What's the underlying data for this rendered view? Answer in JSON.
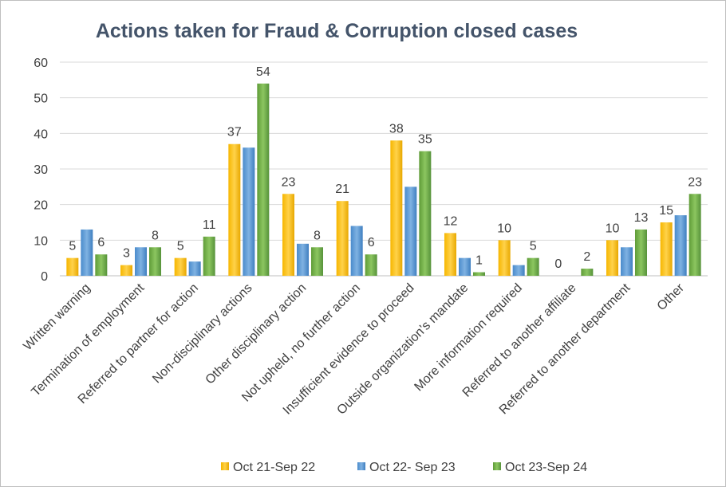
{
  "chart_data": {
    "type": "bar",
    "title": "Actions taken for Fraud & Corruption closed cases",
    "xlabel": "",
    "ylabel": "",
    "ylim": [
      0,
      60
    ],
    "yticks": [
      0,
      10,
      20,
      30,
      40,
      50,
      60
    ],
    "grid": true,
    "legend_position": "bottom",
    "categories": [
      "Written warning",
      "Termination of employment",
      "Referred to partner for action",
      "Non-disciplinary actions",
      "Other disciplinary action",
      "Not upheld, no further action",
      "Insufficient evidence to proceed",
      "Outside organization’s mandate",
      "More information required",
      "Referred to another affiliate",
      "Referred to another department",
      "Other"
    ],
    "series": [
      {
        "name": "Oct 21-Sep 22",
        "color": "#ffc000",
        "values": [
          5,
          3,
          5,
          37,
          23,
          21,
          38,
          12,
          10,
          0,
          10,
          15
        ],
        "labels": [
          "5",
          "3",
          "5",
          "37",
          "23",
          "21",
          "38",
          "12",
          "10",
          "0",
          "10",
          "15"
        ]
      },
      {
        "name": "Oct 22- Sep 23",
        "color": "#5b9bd5",
        "values": [
          13,
          8,
          4,
          36,
          9,
          14,
          25,
          5,
          3,
          0,
          8,
          17
        ],
        "labels": [
          "",
          "",
          "",
          "",
          "",
          "",
          "",
          "",
          "",
          "",
          "",
          ""
        ]
      },
      {
        "name": "Oct 23-Sep 24",
        "color": "#70ad47",
        "values": [
          6,
          8,
          11,
          54,
          8,
          6,
          35,
          1,
          5,
          2,
          13,
          23
        ],
        "labels": [
          "6",
          "8",
          "11",
          "54",
          "8",
          "6",
          "35",
          "1",
          "5",
          "2",
          "13",
          "23"
        ]
      }
    ]
  }
}
